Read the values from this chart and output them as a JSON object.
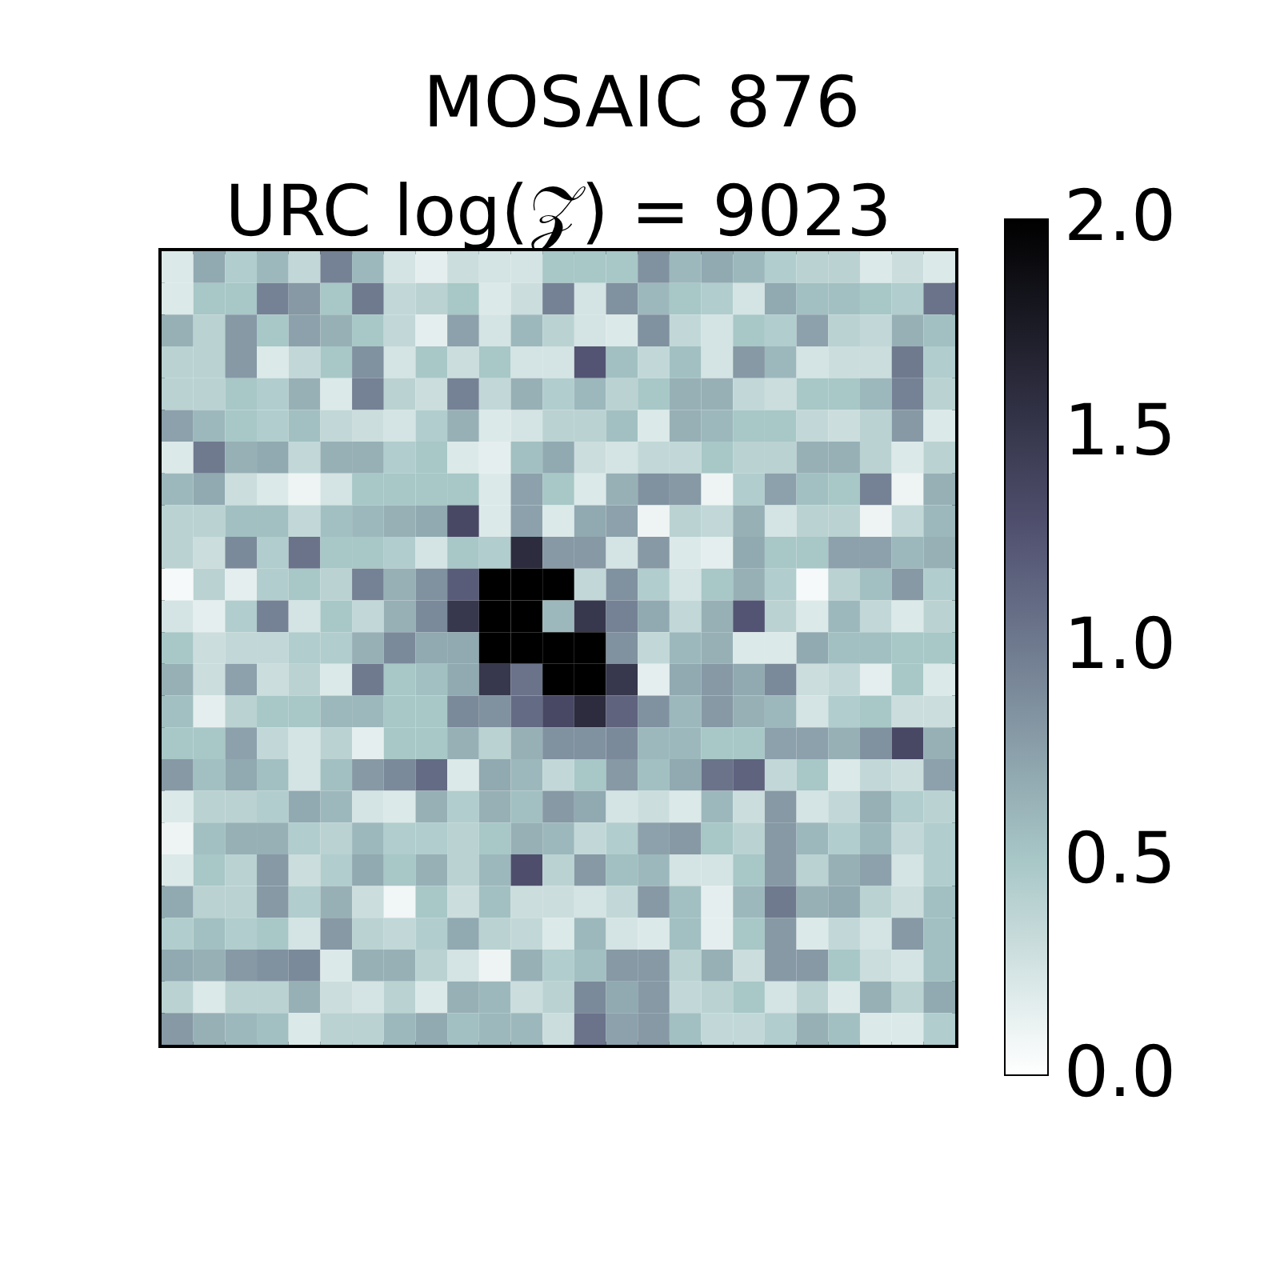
{
  "chart_data": {
    "type": "heatmap",
    "title": "MOSAIC 876",
    "subtitle": "URC log(𝒵) = 9023",
    "categories": [
      null,
      null,
      null,
      null,
      null,
      null,
      null,
      null,
      null,
      null,
      null,
      null,
      null,
      null,
      null,
      null,
      null,
      null,
      null,
      null,
      null,
      null,
      null,
      null,
      null
    ],
    "y_categories": [
      null,
      null,
      null,
      null,
      null,
      null,
      null,
      null,
      null,
      null,
      null,
      null,
      null,
      null,
      null,
      null,
      null,
      null,
      null,
      null,
      null,
      null,
      null,
      null,
      null
    ],
    "cells": [
      [
        0.2,
        0.7,
        0.45,
        0.6,
        0.35,
        0.95,
        0.6,
        0.25,
        0.15,
        0.3,
        0.25,
        0.25,
        0.5,
        0.5,
        0.5,
        0.85,
        0.6,
        0.7,
        0.6,
        0.45,
        0.4,
        0.4,
        0.2,
        0.3,
        0.2
      ],
      [
        0.2,
        0.5,
        0.5,
        0.95,
        0.8,
        0.5,
        1.0,
        0.35,
        0.4,
        0.5,
        0.2,
        0.3,
        0.95,
        0.25,
        0.85,
        0.6,
        0.5,
        0.45,
        0.25,
        0.7,
        0.55,
        0.55,
        0.5,
        0.45,
        1.05
      ],
      [
        0.65,
        0.4,
        0.8,
        0.5,
        0.75,
        0.65,
        0.5,
        0.35,
        0.15,
        0.75,
        0.25,
        0.6,
        0.4,
        0.25,
        0.2,
        0.85,
        0.35,
        0.25,
        0.5,
        0.45,
        0.75,
        0.4,
        0.35,
        0.65,
        0.55
      ],
      [
        0.4,
        0.4,
        0.8,
        0.2,
        0.35,
        0.5,
        0.85,
        0.25,
        0.5,
        0.3,
        0.5,
        0.25,
        0.25,
        1.25,
        0.55,
        0.35,
        0.55,
        0.25,
        0.8,
        0.6,
        0.25,
        0.3,
        0.3,
        1.0,
        0.45
      ],
      [
        0.4,
        0.4,
        0.5,
        0.45,
        0.65,
        0.2,
        0.95,
        0.4,
        0.3,
        0.95,
        0.35,
        0.65,
        0.45,
        0.6,
        0.4,
        0.5,
        0.65,
        0.65,
        0.35,
        0.3,
        0.5,
        0.5,
        0.6,
        0.95,
        0.4
      ],
      [
        0.75,
        0.6,
        0.5,
        0.45,
        0.55,
        0.35,
        0.3,
        0.25,
        0.45,
        0.65,
        0.2,
        0.25,
        0.4,
        0.4,
        0.55,
        0.2,
        0.65,
        0.6,
        0.5,
        0.5,
        0.35,
        0.3,
        0.4,
        0.8,
        0.2
      ],
      [
        0.2,
        1.0,
        0.65,
        0.7,
        0.35,
        0.65,
        0.65,
        0.45,
        0.5,
        0.2,
        0.15,
        0.55,
        0.7,
        0.3,
        0.25,
        0.35,
        0.35,
        0.5,
        0.4,
        0.4,
        0.65,
        0.65,
        0.4,
        0.2,
        0.4
      ],
      [
        0.6,
        0.7,
        0.3,
        0.2,
        0.1,
        0.25,
        0.5,
        0.5,
        0.5,
        0.5,
        0.2,
        0.75,
        0.5,
        0.2,
        0.65,
        0.85,
        0.8,
        0.1,
        0.45,
        0.75,
        0.55,
        0.5,
        0.95,
        0.1,
        0.65
      ],
      [
        0.4,
        0.4,
        0.55,
        0.55,
        0.35,
        0.55,
        0.6,
        0.65,
        0.7,
        1.35,
        0.2,
        0.75,
        0.2,
        0.7,
        0.75,
        0.1,
        0.4,
        0.35,
        0.65,
        0.25,
        0.4,
        0.4,
        0.1,
        0.35,
        0.6
      ],
      [
        0.4,
        0.3,
        0.9,
        0.45,
        1.05,
        0.5,
        0.5,
        0.45,
        0.25,
        0.5,
        0.45,
        1.6,
        0.8,
        0.8,
        0.25,
        0.8,
        0.2,
        0.15,
        0.7,
        0.5,
        0.5,
        0.75,
        0.75,
        0.6,
        0.65
      ],
      [
        0.05,
        0.4,
        0.15,
        0.45,
        0.5,
        0.4,
        0.95,
        0.65,
        0.85,
        1.2,
        2.0,
        2.0,
        2.0,
        0.35,
        0.85,
        0.45,
        0.25,
        0.5,
        0.65,
        0.45,
        0.05,
        0.4,
        0.55,
        0.8,
        0.45
      ],
      [
        0.25,
        0.15,
        0.45,
        0.95,
        0.25,
        0.5,
        0.35,
        0.65,
        0.9,
        1.5,
        2.0,
        2.0,
        0.6,
        1.5,
        0.95,
        0.7,
        0.35,
        0.65,
        1.25,
        0.4,
        0.2,
        0.6,
        0.35,
        0.2,
        0.4
      ],
      [
        0.5,
        0.3,
        0.35,
        0.35,
        0.45,
        0.45,
        0.65,
        0.9,
        0.7,
        0.7,
        2.0,
        2.0,
        2.0,
        2.0,
        0.85,
        0.35,
        0.6,
        0.65,
        0.2,
        0.2,
        0.7,
        0.55,
        0.55,
        0.5,
        0.5
      ],
      [
        0.65,
        0.3,
        0.75,
        0.3,
        0.4,
        0.2,
        1.0,
        0.5,
        0.55,
        0.7,
        1.5,
        1.05,
        2.0,
        2.0,
        1.5,
        0.15,
        0.7,
        0.8,
        0.7,
        0.9,
        0.3,
        0.35,
        0.15,
        0.5,
        0.2
      ],
      [
        0.55,
        0.15,
        0.4,
        0.5,
        0.5,
        0.6,
        0.6,
        0.5,
        0.5,
        0.9,
        0.85,
        1.1,
        1.35,
        1.6,
        1.15,
        0.85,
        0.6,
        0.8,
        0.65,
        0.6,
        0.25,
        0.45,
        0.5,
        0.3,
        0.3
      ],
      [
        0.5,
        0.5,
        0.75,
        0.35,
        0.25,
        0.4,
        0.15,
        0.5,
        0.5,
        0.65,
        0.4,
        0.65,
        0.85,
        0.85,
        0.9,
        0.6,
        0.6,
        0.5,
        0.5,
        0.75,
        0.75,
        0.65,
        0.85,
        1.35,
        0.65
      ],
      [
        0.8,
        0.55,
        0.7,
        0.55,
        0.25,
        0.55,
        0.8,
        0.9,
        1.1,
        0.2,
        0.7,
        0.6,
        0.35,
        0.5,
        0.8,
        0.55,
        0.7,
        1.05,
        1.15,
        0.35,
        0.5,
        0.2,
        0.35,
        0.3,
        0.75
      ],
      [
        0.2,
        0.4,
        0.4,
        0.45,
        0.7,
        0.6,
        0.25,
        0.2,
        0.65,
        0.45,
        0.65,
        0.55,
        0.8,
        0.7,
        0.25,
        0.3,
        0.2,
        0.6,
        0.3,
        0.8,
        0.25,
        0.35,
        0.65,
        0.45,
        0.4
      ],
      [
        0.1,
        0.55,
        0.65,
        0.65,
        0.45,
        0.4,
        0.6,
        0.45,
        0.45,
        0.4,
        0.5,
        0.65,
        0.6,
        0.35,
        0.45,
        0.75,
        0.8,
        0.5,
        0.4,
        0.8,
        0.6,
        0.45,
        0.6,
        0.35,
        0.45
      ],
      [
        0.2,
        0.5,
        0.4,
        0.8,
        0.3,
        0.45,
        0.7,
        0.5,
        0.65,
        0.4,
        0.6,
        1.3,
        0.4,
        0.8,
        0.55,
        0.6,
        0.25,
        0.25,
        0.5,
        0.8,
        0.4,
        0.65,
        0.75,
        0.25,
        0.45
      ],
      [
        0.7,
        0.4,
        0.4,
        0.8,
        0.45,
        0.65,
        0.3,
        0.08,
        0.5,
        0.3,
        0.55,
        0.3,
        0.3,
        0.25,
        0.35,
        0.8,
        0.55,
        0.15,
        0.6,
        1.0,
        0.65,
        0.7,
        0.4,
        0.3,
        0.55
      ],
      [
        0.45,
        0.55,
        0.45,
        0.5,
        0.25,
        0.8,
        0.4,
        0.35,
        0.45,
        0.7,
        0.4,
        0.35,
        0.2,
        0.6,
        0.25,
        0.2,
        0.55,
        0.15,
        0.5,
        0.8,
        0.2,
        0.35,
        0.25,
        0.8,
        0.55
      ],
      [
        0.7,
        0.65,
        0.8,
        0.85,
        0.9,
        0.2,
        0.65,
        0.65,
        0.4,
        0.25,
        0.1,
        0.65,
        0.45,
        0.55,
        0.8,
        0.8,
        0.4,
        0.65,
        0.3,
        0.8,
        0.8,
        0.5,
        0.3,
        0.25,
        0.55
      ],
      [
        0.4,
        0.2,
        0.4,
        0.4,
        0.65,
        0.3,
        0.25,
        0.4,
        0.2,
        0.65,
        0.6,
        0.3,
        0.4,
        0.9,
        0.7,
        0.8,
        0.35,
        0.4,
        0.5,
        0.25,
        0.4,
        0.2,
        0.65,
        0.4,
        0.7
      ],
      [
        0.8,
        0.65,
        0.6,
        0.55,
        0.2,
        0.4,
        0.4,
        0.6,
        0.7,
        0.55,
        0.6,
        0.6,
        0.3,
        1.05,
        0.75,
        0.8,
        0.55,
        0.35,
        0.35,
        0.45,
        0.65,
        0.55,
        0.2,
        0.2,
        0.45
      ]
    ],
    "clim": [
      0,
      2
    ],
    "cticks": [
      {
        "value": 0,
        "label": "0.0"
      },
      0.5,
      {
        "value": 1,
        "label": "1.0"
      },
      1.5,
      {
        "value": 2,
        "label": "2.0"
      }
    ],
    "tick_labels": false
  }
}
